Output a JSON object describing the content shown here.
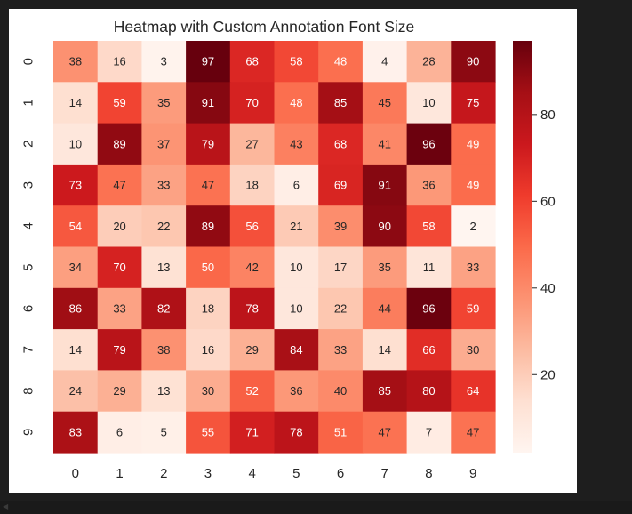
{
  "chart_data": {
    "type": "heatmap",
    "title": "Heatmap with Custom Annotation Font Size",
    "xlabel": "",
    "ylabel": "",
    "x_ticks": [
      "0",
      "1",
      "2",
      "3",
      "4",
      "5",
      "6",
      "7",
      "8",
      "9"
    ],
    "y_ticks": [
      "0",
      "1",
      "2",
      "3",
      "4",
      "5",
      "6",
      "7",
      "8",
      "9"
    ],
    "values": [
      [
        38,
        16,
        3,
        97,
        68,
        58,
        48,
        4,
        28,
        90
      ],
      [
        14,
        59,
        35,
        91,
        70,
        48,
        85,
        45,
        10,
        75
      ],
      [
        10,
        89,
        37,
        79,
        27,
        43,
        68,
        41,
        96,
        49
      ],
      [
        73,
        47,
        33,
        47,
        18,
        6,
        69,
        91,
        36,
        49
      ],
      [
        54,
        20,
        22,
        89,
        56,
        21,
        39,
        90,
        58,
        2
      ],
      [
        34,
        70,
        13,
        50,
        42,
        10,
        17,
        35,
        11,
        33
      ],
      [
        86,
        33,
        82,
        18,
        78,
        10,
        22,
        44,
        96,
        59
      ],
      [
        14,
        79,
        38,
        16,
        29,
        84,
        33,
        14,
        66,
        30
      ],
      [
        24,
        29,
        13,
        30,
        52,
        36,
        40,
        85,
        80,
        64
      ],
      [
        83,
        6,
        5,
        55,
        71,
        78,
        51,
        47,
        7,
        47
      ]
    ],
    "colormap": "Reds",
    "vmin": 2,
    "vmax": 97,
    "colorbar_ticks": [
      20,
      40,
      60,
      80
    ],
    "annotations": true,
    "grid": false
  },
  "colors": {
    "figure_background": "#ffffff",
    "page_background": "#1e1e1e",
    "low": "#fff5f0",
    "high": "#67000d"
  }
}
